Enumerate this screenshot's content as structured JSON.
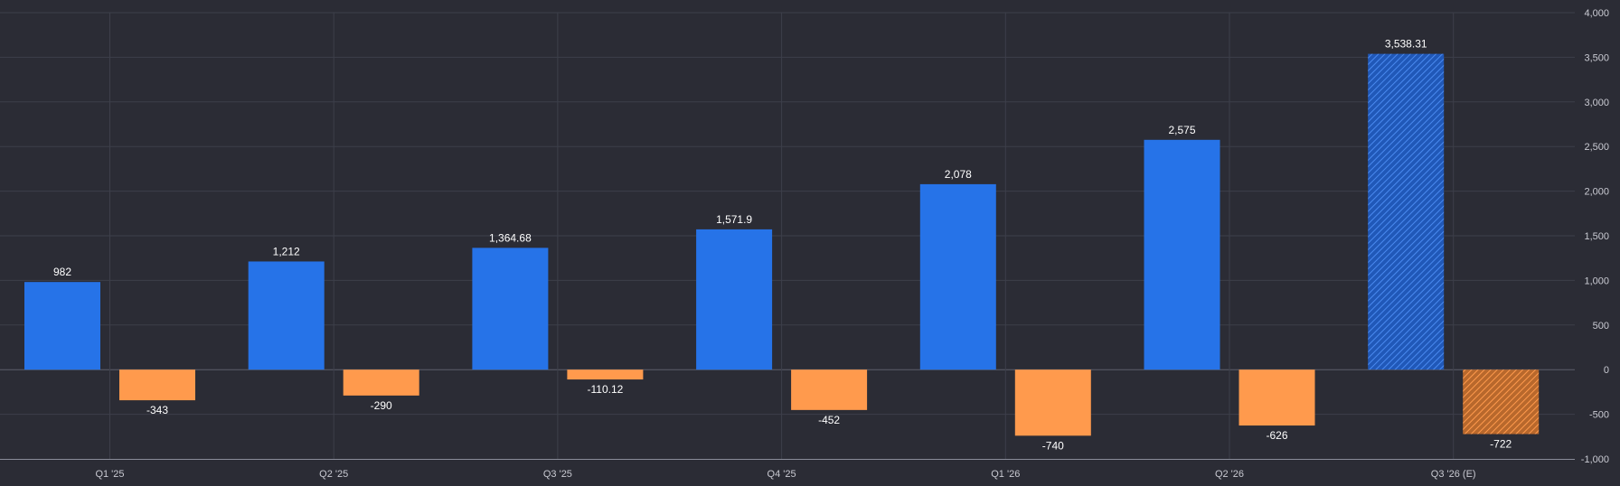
{
  "chart_data": {
    "type": "bar",
    "categories": [
      "Q1 '25",
      "Q2 '25",
      "Q3 '25",
      "Q4 '25",
      "Q1 '26",
      "Q2 '26",
      "Q3 '26 (E)"
    ],
    "series": [
      {
        "values": [
          982,
          1212,
          1364.68,
          1571.9,
          2078,
          2575,
          3538.31
        ],
        "labels": [
          "982",
          "1,212",
          "1,364.68",
          "1,571.9",
          "2,078",
          "2,575",
          "3,538.31"
        ],
        "color": "#2673e8"
      },
      {
        "values": [
          -343,
          -290,
          -110.12,
          -452,
          -740,
          -626,
          -722
        ],
        "labels": [
          "-343",
          "-290",
          "-110.12",
          "-452",
          "-740",
          "-626",
          "-722"
        ],
        "color": "#ff9a4d"
      }
    ],
    "estimated_category": "Q3 '26 (E)",
    "ylim": [
      -1000,
      4000
    ],
    "yticks": [
      -1000,
      -500,
      0,
      500,
      1000,
      1500,
      2000,
      2500,
      3000,
      3500,
      4000
    ],
    "ytick_labels": [
      "-1,000",
      "-500",
      "0",
      "500",
      "1,000",
      "1,500",
      "2,000",
      "2,500",
      "3,000",
      "3,500",
      "4,000"
    ],
    "y_axis_position": "right",
    "grid": true,
    "title": "",
    "xlabel": "",
    "ylabel": ""
  }
}
